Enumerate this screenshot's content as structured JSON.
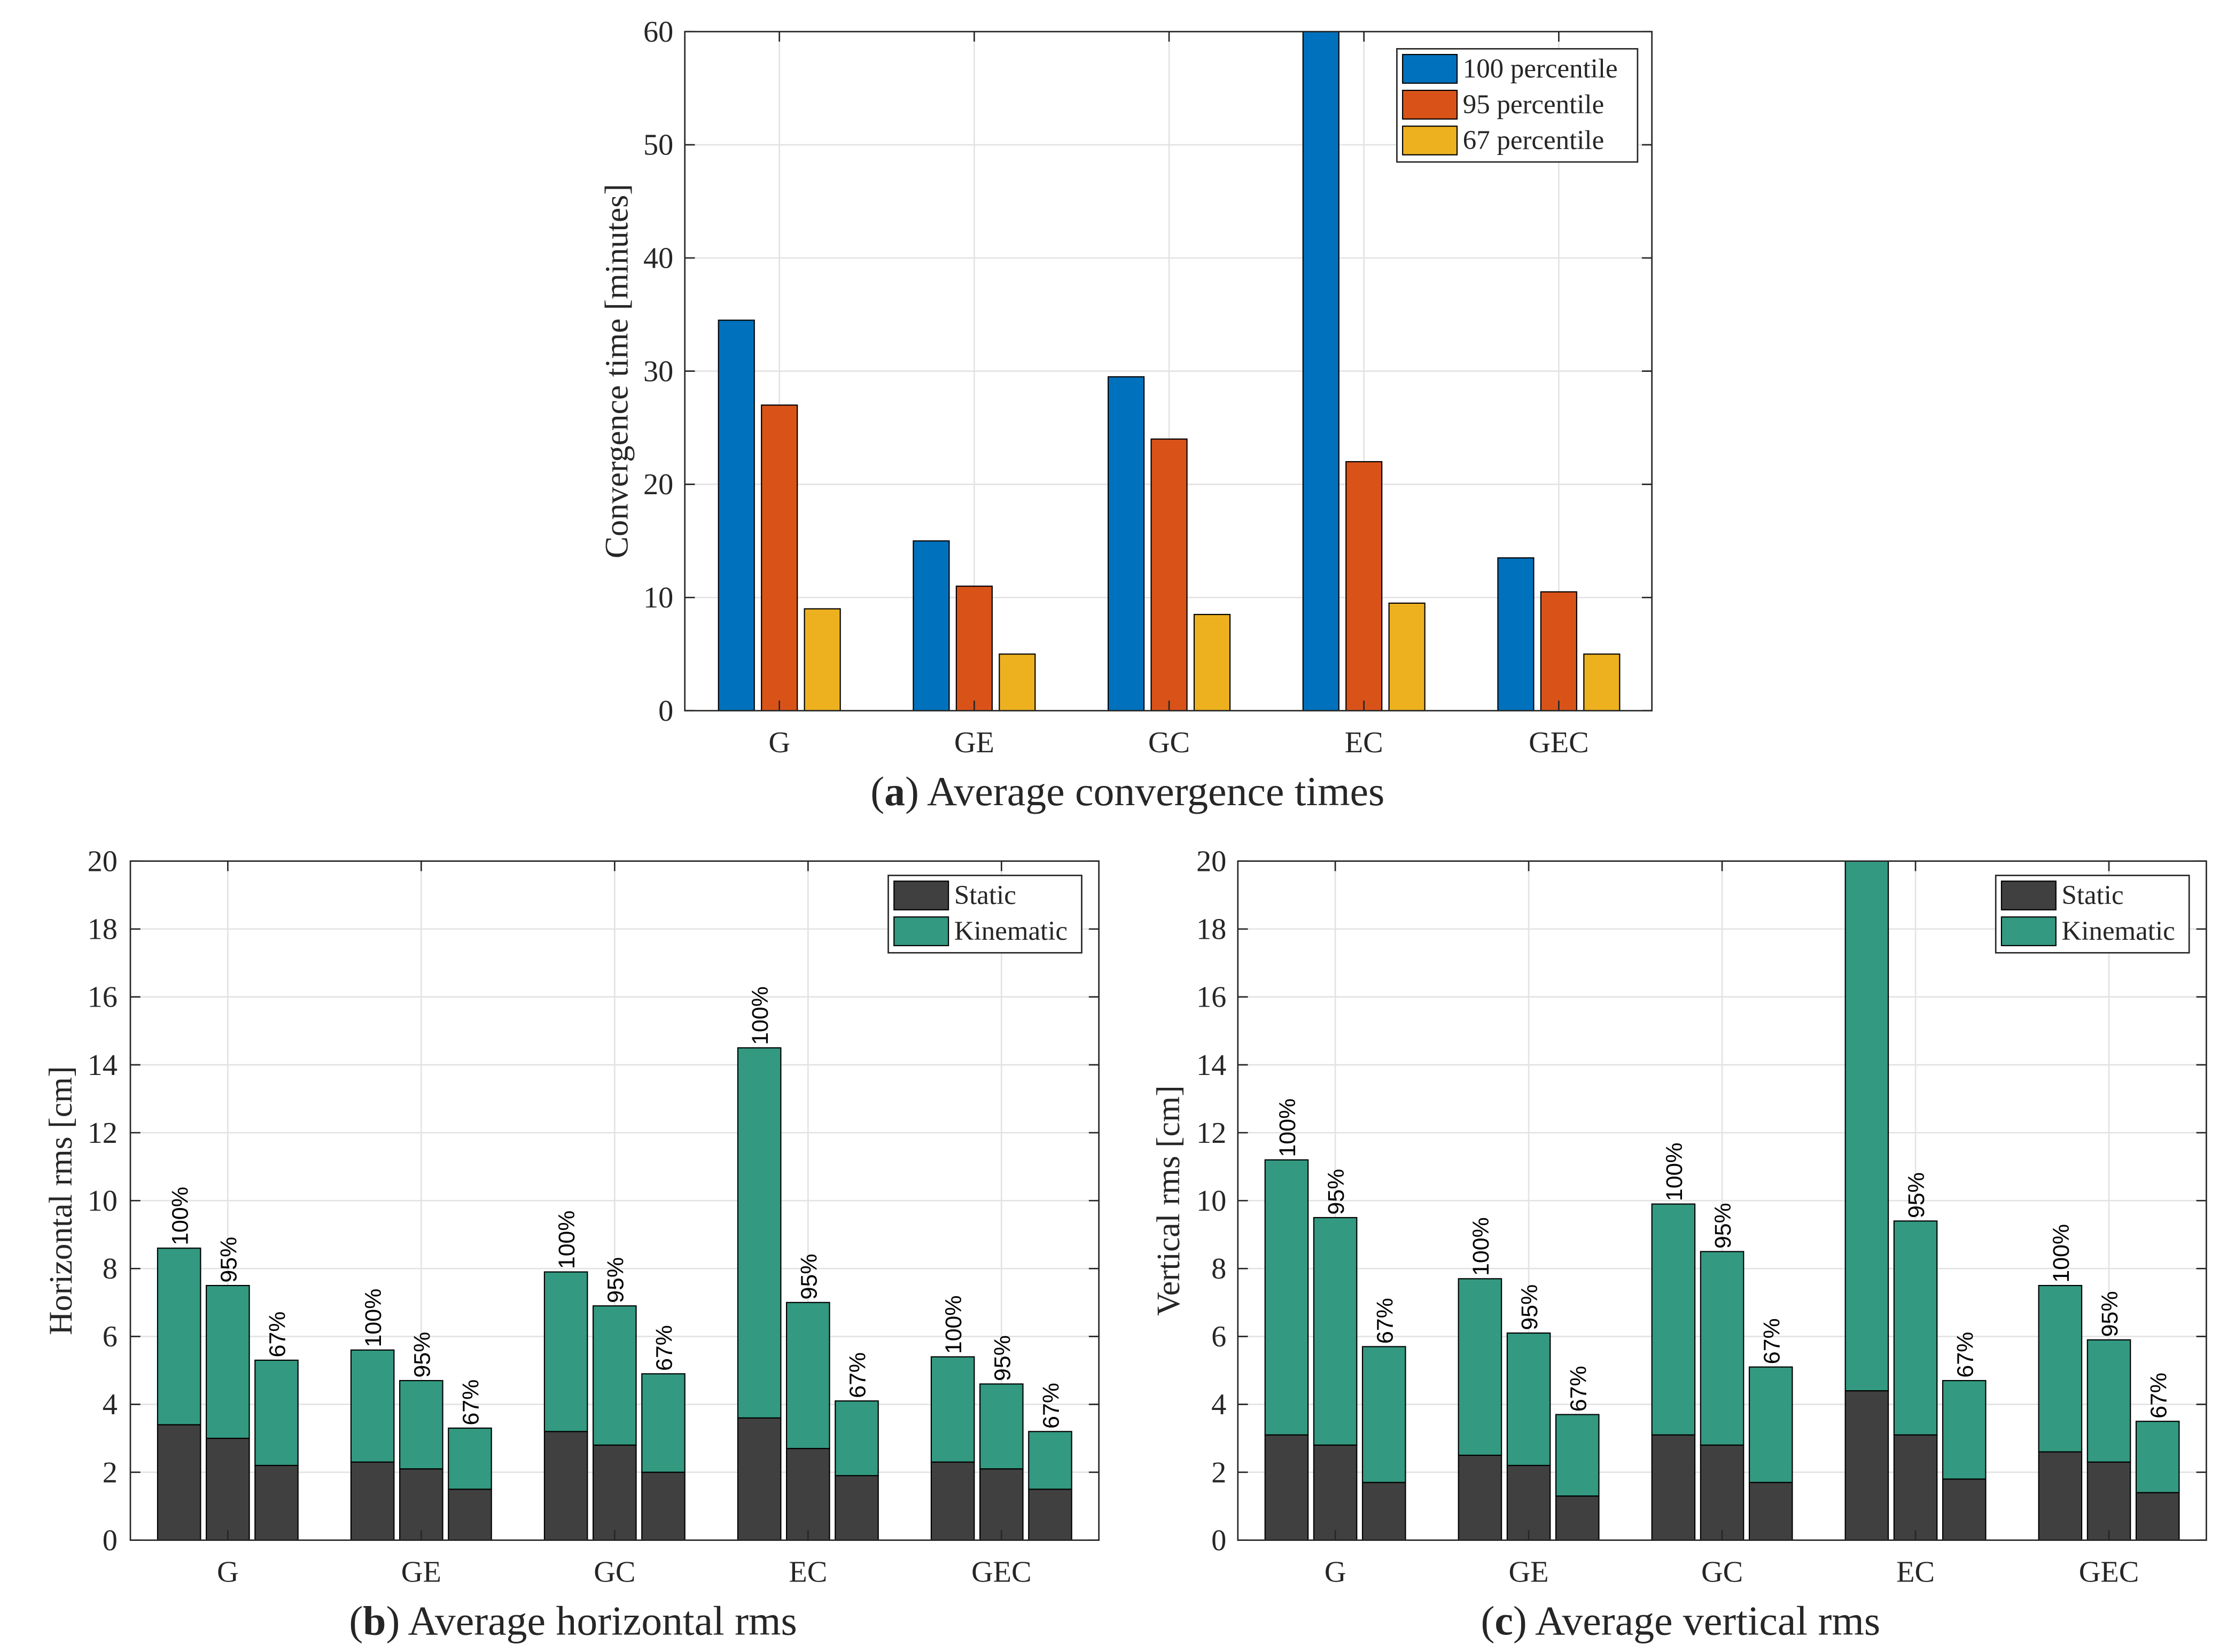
{
  "colors": {
    "p100": "#0072BD",
    "p95": "#D95319",
    "p67": "#EDB120",
    "static": "#404040",
    "kinematic": "#339980",
    "grid": "#e3e3e3",
    "axis": "#262626"
  },
  "chart_data": [
    {
      "id": "a",
      "type": "bar",
      "caption_letter": "a",
      "caption_text": " Average convergence times",
      "ylabel": "Convergence time [minutes]",
      "xlabel": "",
      "ylim": [
        0,
        60
      ],
      "yticks": [
        0,
        10,
        20,
        30,
        40,
        50,
        60
      ],
      "grid": true,
      "legend_position": "top-right",
      "categories": [
        "G",
        "GE",
        "GC",
        "EC",
        "GEC"
      ],
      "series": [
        {
          "name": "100 percentile",
          "color_key": "p100",
          "values": [
            34.5,
            15,
            29.5,
            60,
            13.5
          ]
        },
        {
          "name": "95 percentile",
          "color_key": "p95",
          "values": [
            27,
            11,
            24,
            22,
            10.5
          ]
        },
        {
          "name": "67 percentile",
          "color_key": "p67",
          "values": [
            9,
            5,
            8.5,
            9.5,
            5
          ]
        }
      ]
    },
    {
      "id": "b",
      "type": "bar",
      "stacked": true,
      "caption_letter": "b",
      "caption_text": " Average horizontal rms",
      "ylabel": "Horizontal rms [cm]",
      "xlabel": "",
      "ylim": [
        0,
        20
      ],
      "yticks": [
        0,
        2,
        4,
        6,
        8,
        10,
        12,
        14,
        16,
        18,
        20
      ],
      "grid": true,
      "legend_position": "top-right",
      "categories": [
        "G",
        "GE",
        "GC",
        "EC",
        "GEC"
      ],
      "bar_labels": [
        "100%",
        "95%",
        "67%"
      ],
      "series": [
        {
          "name": "Static",
          "color_key": "static",
          "values": [
            [
              3.4,
              3.0,
              2.2
            ],
            [
              2.3,
              2.1,
              1.5
            ],
            [
              3.2,
              2.8,
              2.0
            ],
            [
              3.6,
              2.7,
              1.9
            ],
            [
              2.3,
              2.1,
              1.5
            ]
          ]
        },
        {
          "name": "Kinematic",
          "color_key": "kinematic",
          "values": [
            [
              5.2,
              4.5,
              3.1
            ],
            [
              3.3,
              2.6,
              1.8
            ],
            [
              4.7,
              4.1,
              2.9
            ],
            [
              10.9,
              4.3,
              2.2
            ],
            [
              3.1,
              2.5,
              1.7
            ]
          ]
        }
      ]
    },
    {
      "id": "c",
      "type": "bar",
      "stacked": true,
      "caption_letter": "c",
      "caption_text": " Average vertical rms",
      "ylabel": "Vertical rms [cm]",
      "xlabel": "",
      "ylim": [
        0,
        20
      ],
      "yticks": [
        0,
        2,
        4,
        6,
        8,
        10,
        12,
        14,
        16,
        18,
        20
      ],
      "grid": true,
      "legend_position": "top-right",
      "categories": [
        "G",
        "GE",
        "GC",
        "EC",
        "GEC"
      ],
      "bar_labels": [
        "100%",
        "95%",
        "67%"
      ],
      "series": [
        {
          "name": "Static",
          "color_key": "static",
          "values": [
            [
              3.1,
              2.8,
              1.7
            ],
            [
              2.5,
              2.2,
              1.3
            ],
            [
              3.1,
              2.8,
              1.7
            ],
            [
              4.4,
              3.1,
              1.8
            ],
            [
              2.6,
              2.3,
              1.4
            ]
          ]
        },
        {
          "name": "Kinematic",
          "color_key": "kinematic",
          "values": [
            [
              8.1,
              6.7,
              4.0
            ],
            [
              5.2,
              3.9,
              2.4
            ],
            [
              6.8,
              5.7,
              3.4
            ],
            [
              15.6,
              6.3,
              2.9
            ],
            [
              4.9,
              3.6,
              2.1
            ]
          ]
        }
      ]
    }
  ]
}
